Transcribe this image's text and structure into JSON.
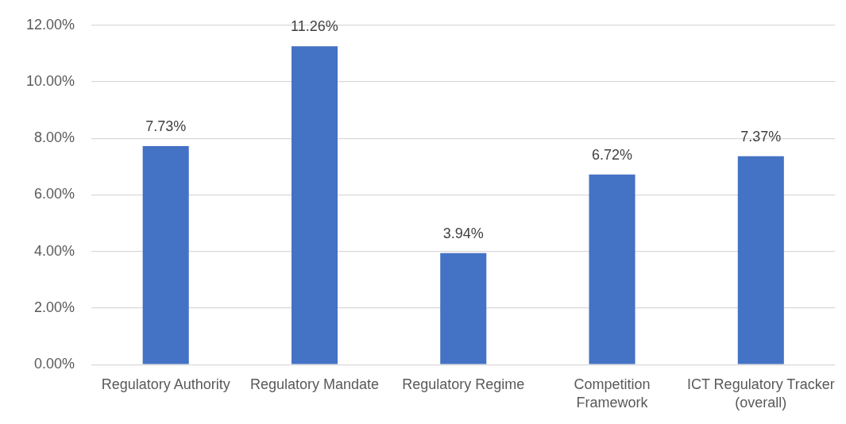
{
  "chart_data": {
    "type": "bar",
    "categories": [
      "Regulatory Authority",
      "Regulatory Mandate",
      "Regulatory Regime",
      "Competition Framework",
      "ICT Regulatory Tracker (overall)"
    ],
    "values": [
      7.73,
      11.26,
      3.94,
      6.72,
      7.37
    ],
    "value_labels": [
      "7.73%",
      "11.26%",
      "3.94%",
      "6.72%",
      "7.37%"
    ],
    "color": "#4472c4",
    "ylim": [
      0,
      12
    ],
    "yticks": [
      {
        "value": 0,
        "label": "0.00%"
      },
      {
        "value": 2,
        "label": "2.00%"
      },
      {
        "value": 4,
        "label": "4.00%"
      },
      {
        "value": 6,
        "label": "6.00%"
      },
      {
        "value": 8,
        "label": "8.00%"
      },
      {
        "value": 10,
        "label": "10.00%"
      },
      {
        "value": 12,
        "label": "12.00%"
      }
    ],
    "grid": "y",
    "legend": false
  }
}
